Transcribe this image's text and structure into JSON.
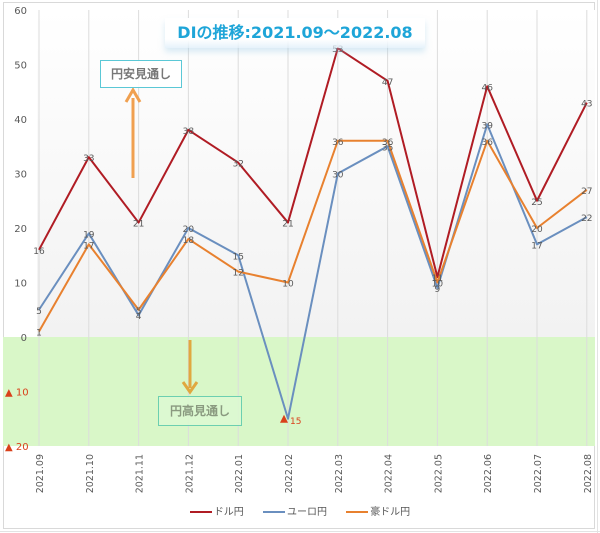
{
  "chart_data": {
    "type": "line",
    "title": "DIの推移:2021.09～2022.08",
    "xlabel": "",
    "ylabel": "",
    "categories": [
      "2021.09",
      "2021.10",
      "2021.11",
      "2021.12",
      "2022.01",
      "2022.02",
      "2022.03",
      "2022.04",
      "2022.05",
      "2022.06",
      "2022.07",
      "2022.08"
    ],
    "series": [
      {
        "name": "ドル円",
        "color": "#b01c24",
        "values": [
          16,
          33,
          21,
          38,
          32,
          21,
          53,
          47,
          11,
          46,
          25,
          43
        ]
      },
      {
        "name": "ユーロ円",
        "color": "#6a8fbf",
        "values": [
          5,
          19,
          4,
          20,
          15,
          -15,
          30,
          35,
          9,
          39,
          17,
          22
        ]
      },
      {
        "name": "豪ドル円",
        "color": "#e8812f",
        "values": [
          1,
          17,
          5,
          18,
          12,
          10,
          36,
          36,
          10,
          36,
          20,
          27
        ]
      }
    ],
    "ylim": [
      -20,
      60
    ],
    "y_ticks": [
      "60",
      "50",
      "40",
      "30",
      "20",
      "10",
      "0",
      "▲ 10",
      "▲ 20"
    ],
    "grid": "vertical",
    "legend_position": "bottom",
    "annotations": [
      {
        "text": "円安見通し",
        "arrow": "up",
        "color": "#f0a050"
      },
      {
        "text": "円高見通し",
        "arrow": "down",
        "color": "#e0a840"
      }
    ],
    "negative_region_color": "#d9f7c8",
    "negative_label_prefix": "▲"
  },
  "legend": {
    "items": [
      {
        "label": "ドル円",
        "color": "#b01c24"
      },
      {
        "label": "ユーロ円",
        "color": "#6a8fbf"
      },
      {
        "label": "豪ドル円",
        "color": "#e8812f"
      }
    ]
  }
}
